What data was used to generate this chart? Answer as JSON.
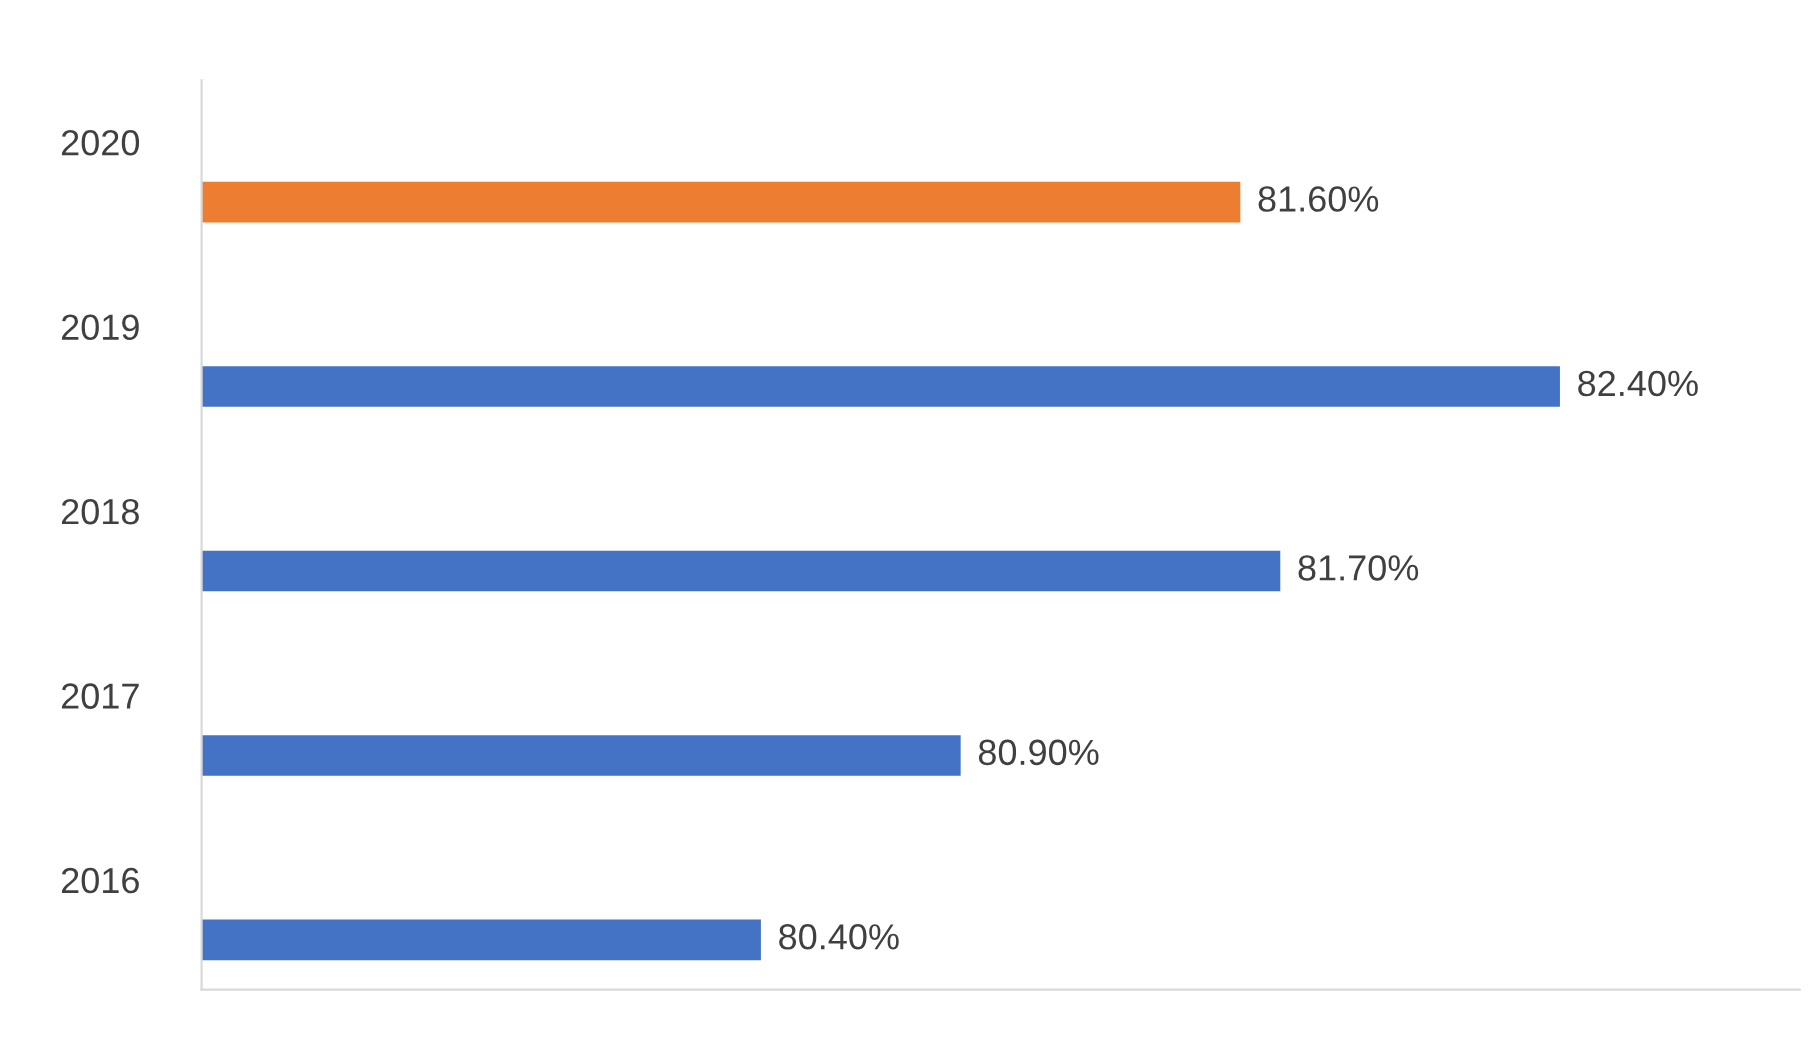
{
  "chart_data": {
    "type": "bar",
    "orientation": "horizontal",
    "categories": [
      "2020",
      "2019",
      "2018",
      "2017",
      "2016"
    ],
    "values": [
      81.6,
      82.4,
      81.7,
      80.9,
      80.4
    ],
    "colors": [
      "#ed7d31",
      "#4472c4",
      "#4472c4",
      "#4472c4",
      "#4472c4"
    ],
    "value_labels": [
      "81.60%",
      "82.40%",
      "81.70%",
      "80.90%",
      "80.40%"
    ],
    "xlim": [
      79,
      83
    ],
    "tick_labels": "y",
    "grid": false,
    "legend": false
  }
}
